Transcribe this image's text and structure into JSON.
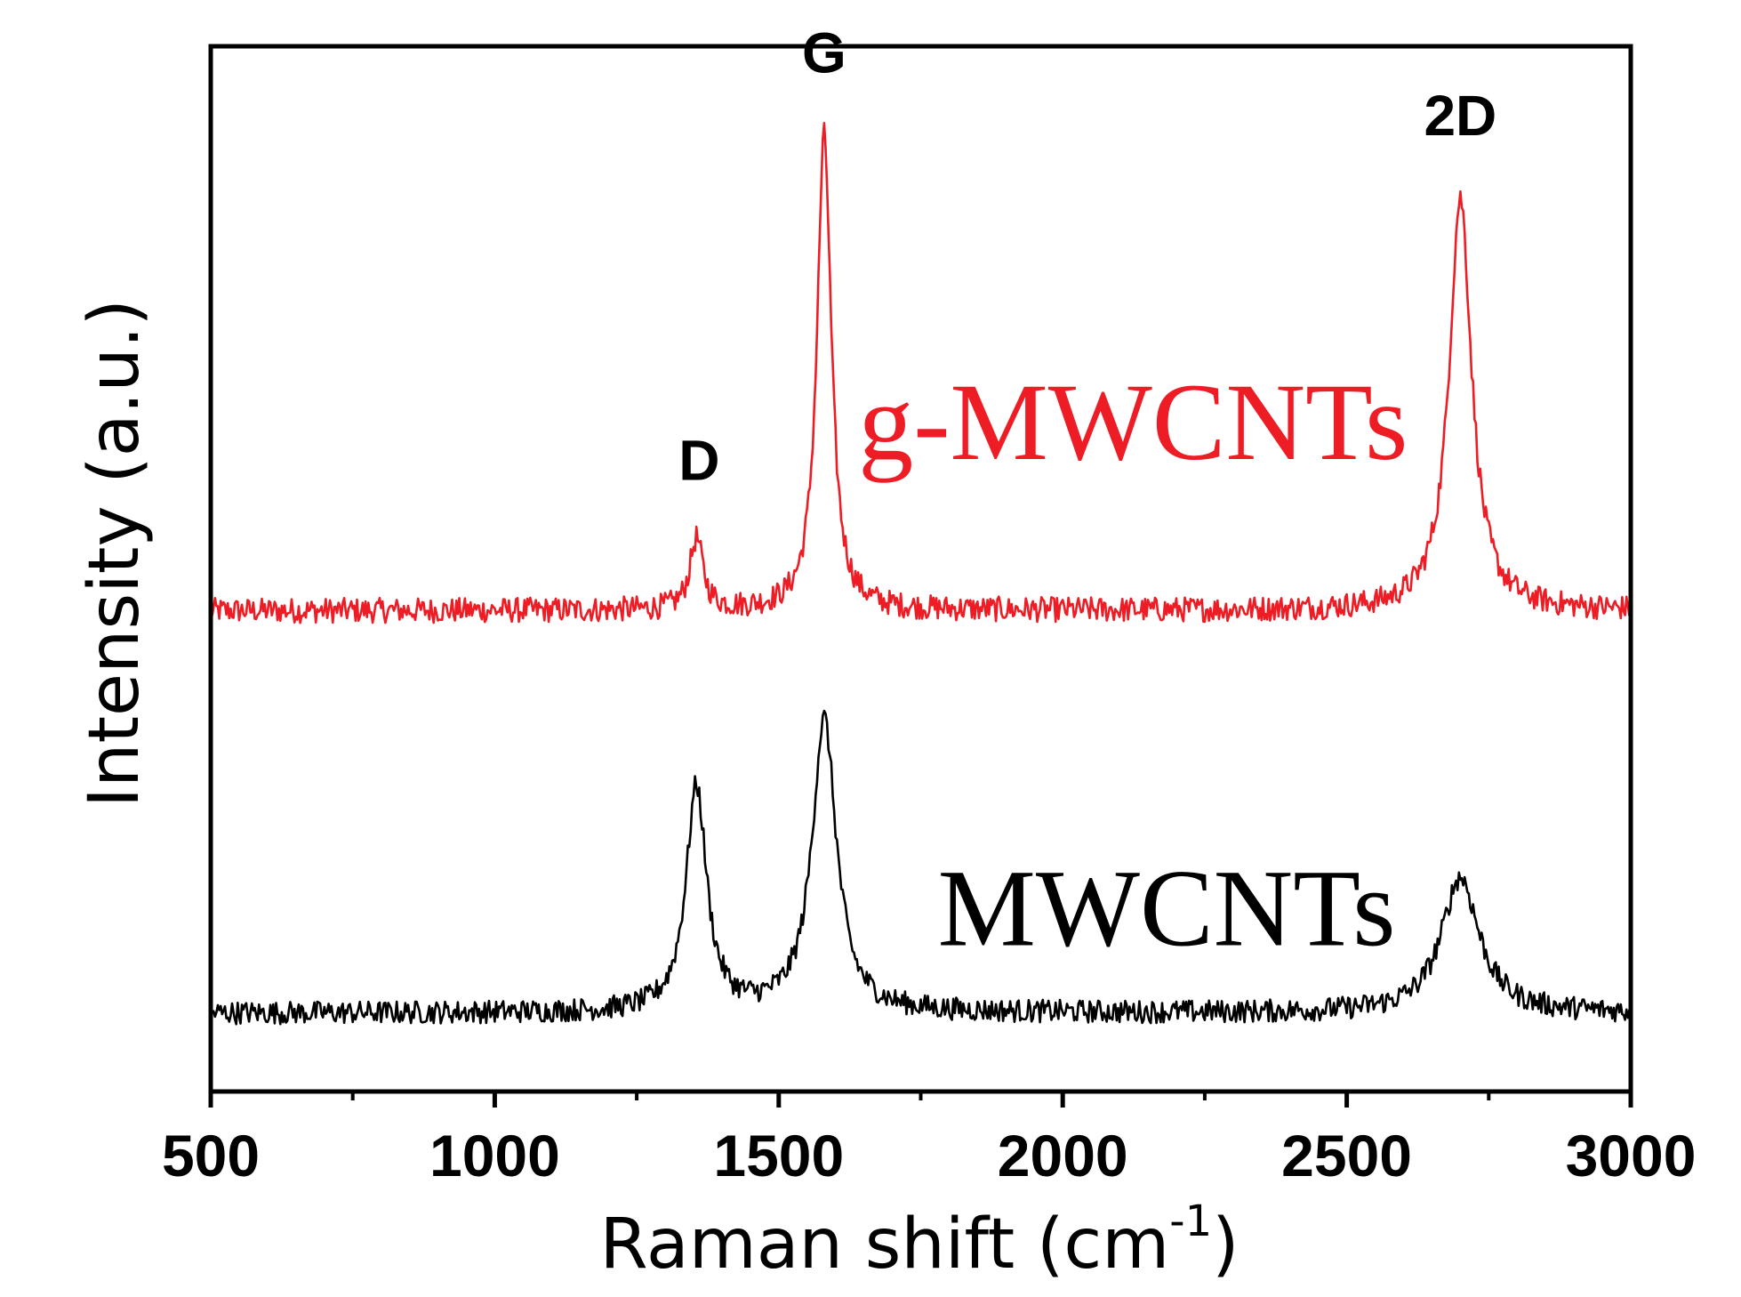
{
  "chart_data": {
    "type": "line",
    "title": "",
    "xlabel": "Raman shift (cm",
    "xlabel_superscript": "-1",
    "xlabel_suffix": ")",
    "ylabel": "Intensity (a.u.)",
    "xlim": [
      500,
      3000
    ],
    "ylim": [
      0,
      1
    ],
    "x_ticks_major": [
      500,
      1000,
      1500,
      2000,
      2500,
      3000
    ],
    "x_tick_labels": [
      "500",
      "1000",
      "1500",
      "2000",
      "2500",
      "3000"
    ],
    "x_ticks_minor": [
      750,
      1250,
      1750,
      2250,
      2750
    ],
    "y_ticks": [],
    "grid": false,
    "peak_labels": [
      {
        "text": "D",
        "x": 1360,
        "y": 0.585
      },
      {
        "text": "G",
        "x": 1580,
        "y": 0.975
      },
      {
        "text": "2D",
        "x": 2700,
        "y": 0.915
      }
    ],
    "series": [
      {
        "name": "g-MWCNTs",
        "label_text": "g-MWCNTs",
        "color": "#ee1c24",
        "baseline": 0.46,
        "noise": 0.012,
        "peaks": [
          {
            "center": 1355,
            "height": 0.068,
            "width": 14
          },
          {
            "center": 1580,
            "height": 0.455,
            "width": 15
          },
          {
            "center": 2700,
            "height": 0.395,
            "width": 24
          }
        ],
        "label_anchor": {
          "x": 1640,
          "y": 0.605
        }
      },
      {
        "name": "MWCNTs",
        "label_text": "MWCNTs",
        "color": "#000000",
        "baseline": 0.075,
        "noise": 0.011,
        "peaks": [
          {
            "center": 1355,
            "height": 0.215,
            "width": 22
          },
          {
            "center": 1580,
            "height": 0.28,
            "width": 26
          },
          {
            "center": 2700,
            "height": 0.13,
            "width": 40
          }
        ],
        "label_anchor": {
          "x": 1780,
          "y": 0.14
        }
      }
    ]
  }
}
